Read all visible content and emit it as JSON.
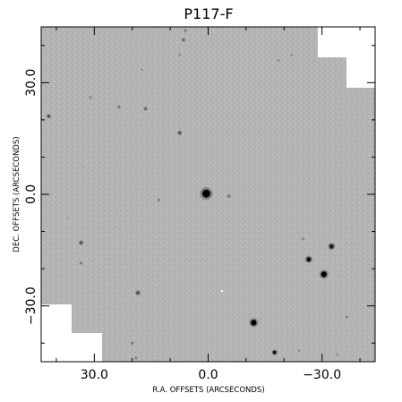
{
  "title": "P117-F",
  "xlabel": "R.A. OFFSETS (ARCSECONDS)",
  "ylabel": "DEC. OFFSETS (ARCSECONDS)",
  "x_ticks": [
    {
      "value": 30,
      "label": "30.0"
    },
    {
      "value": 0,
      "label": "0.0"
    },
    {
      "value": -30,
      "label": "−30.0"
    }
  ],
  "y_ticks": [
    {
      "value": 30,
      "label": "30.0"
    },
    {
      "value": 0,
      "label": "0.0"
    },
    {
      "value": -30,
      "label": "−30.0"
    }
  ],
  "x_range": [
    44,
    -44
  ],
  "y_range": [
    -45,
    45
  ],
  "field_color": "#b4b4b4",
  "sources": [
    {
      "ra": 0.5,
      "dec": 0.2,
      "size": 4.5,
      "shade": "#000000"
    },
    {
      "ra": -12,
      "dec": -34.5,
      "size": 3.2,
      "shade": "#000000"
    },
    {
      "ra": -30.5,
      "dec": -21.5,
      "size": 3.2,
      "shade": "#000000"
    },
    {
      "ra": -26.5,
      "dec": -17.5,
      "size": 2.6,
      "shade": "#111111"
    },
    {
      "ra": -32.5,
      "dec": -14,
      "size": 2.6,
      "shade": "#222222"
    },
    {
      "ra": -17.5,
      "dec": -42.5,
      "size": 2.0,
      "shade": "#111111"
    },
    {
      "ra": 18.5,
      "dec": -26.5,
      "size": 2.0,
      "shade": "#555555"
    },
    {
      "ra": 33.5,
      "dec": -13,
      "size": 1.8,
      "shade": "#555555"
    },
    {
      "ra": 33.5,
      "dec": -18.5,
      "size": 1.3,
      "shade": "#777777"
    },
    {
      "ra": 7.5,
      "dec": 16.5,
      "size": 1.8,
      "shade": "#555555"
    },
    {
      "ra": 42,
      "dec": 21,
      "size": 1.8,
      "shade": "#555555"
    },
    {
      "ra": 16.5,
      "dec": 23,
      "size": 1.6,
      "shade": "#666666"
    },
    {
      "ra": 23.5,
      "dec": 23.5,
      "size": 1.4,
      "shade": "#777777"
    },
    {
      "ra": 31,
      "dec": 26,
      "size": 1.4,
      "shade": "#888888"
    },
    {
      "ra": 6.5,
      "dec": 41.5,
      "size": 1.6,
      "shade": "#666666"
    },
    {
      "ra": 6,
      "dec": 44,
      "size": 1.3,
      "shade": "#777777"
    },
    {
      "ra": 7.5,
      "dec": 37.5,
      "size": 1.2,
      "shade": "#888888"
    },
    {
      "ra": -5.5,
      "dec": -0.5,
      "size": 1.6,
      "shade": "#777777"
    },
    {
      "ra": 13,
      "dec": -1.5,
      "size": 1.3,
      "shade": "#777777"
    },
    {
      "ra": -25,
      "dec": -12,
      "size": 1.3,
      "shade": "#888888"
    },
    {
      "ra": -18.5,
      "dec": 36,
      "size": 1.3,
      "shade": "#888888"
    },
    {
      "ra": -22,
      "dec": 37.5,
      "size": 1.2,
      "shade": "#888888"
    },
    {
      "ra": 20,
      "dec": -40,
      "size": 1.4,
      "shade": "#777777"
    },
    {
      "ra": 19,
      "dec": -44,
      "size": 1.2,
      "shade": "#777777"
    },
    {
      "ra": -36.5,
      "dec": -33,
      "size": 1.2,
      "shade": "#777777"
    },
    {
      "ra": -24,
      "dec": -42,
      "size": 1.1,
      "shade": "#888888"
    },
    {
      "ra": -34,
      "dec": -43,
      "size": 1.1,
      "shade": "#888888"
    },
    {
      "ra": 17.5,
      "dec": 33.5,
      "size": 1.0,
      "shade": "#888888"
    },
    {
      "ra": 33,
      "dec": 7.5,
      "size": 1.0,
      "shade": "#999999"
    },
    {
      "ra": 37,
      "dec": -6.5,
      "size": 1.0,
      "shade": "#999999"
    }
  ]
}
